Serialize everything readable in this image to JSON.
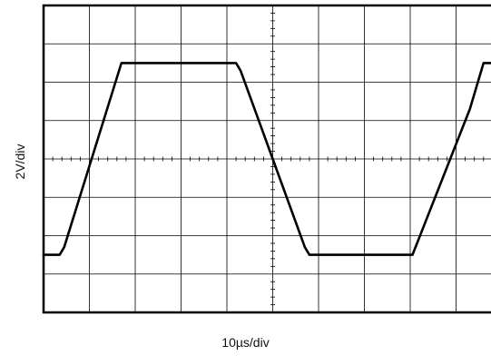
{
  "chart_data": {
    "type": "line",
    "xlabel": "10µs/div",
    "ylabel": "2V/div",
    "x_divisions": 10,
    "y_divisions": 8,
    "grid": true,
    "x_unit": "div",
    "y_unit": "div",
    "xlim": [
      0,
      10
    ],
    "ylim": [
      -4,
      4
    ],
    "series": [
      {
        "x": [
          0.0,
          0.35,
          0.45,
          1.7,
          4.2,
          4.3,
          5.0,
          5.7,
          5.8,
          8.05,
          9.3,
          9.6,
          10.0
        ],
        "y": [
          -2.5,
          -2.5,
          -2.3,
          2.5,
          2.5,
          2.3,
          0.0,
          -2.3,
          -2.5,
          -2.5,
          1.3,
          2.5,
          2.5
        ]
      }
    ]
  }
}
